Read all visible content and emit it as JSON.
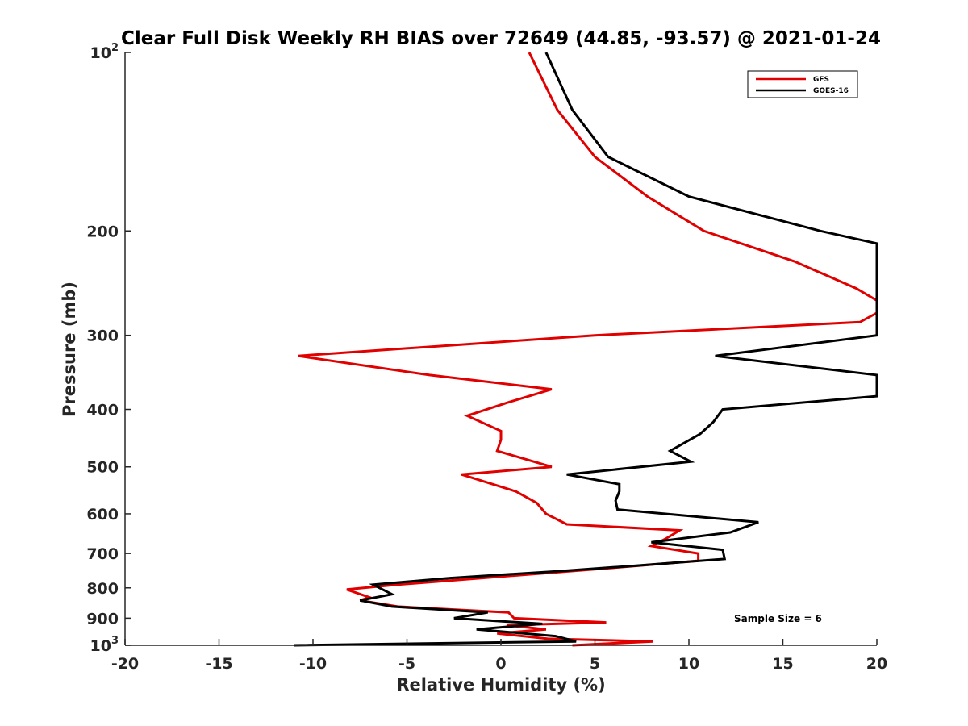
{
  "chart_data": {
    "type": "line",
    "title": "Clear Full Disk Weekly RH BIAS over 72649 (44.85, -93.57) @ 2021-01-24",
    "xlabel": "Relative Humidity (%)",
    "ylabel": "Pressure (mb)",
    "xlim": [
      -20,
      20
    ],
    "ylim": [
      100,
      1000
    ],
    "y_scale": "log",
    "y_reversed": true,
    "grid": false,
    "legend_position": "top-right",
    "x_ticks": [
      "-20",
      "-15",
      "-10",
      "-5",
      "0",
      "5",
      "10",
      "15",
      "20"
    ],
    "y_ticks": [
      {
        "value": 100,
        "label": "10",
        "sup": "2"
      },
      {
        "value": 200,
        "label": "200"
      },
      {
        "value": 300,
        "label": "300"
      },
      {
        "value": 400,
        "label": "400"
      },
      {
        "value": 500,
        "label": "500"
      },
      {
        "value": 600,
        "label": "600"
      },
      {
        "value": 700,
        "label": "700"
      },
      {
        "value": 800,
        "label": "800"
      },
      {
        "value": 900,
        "label": "900"
      },
      {
        "value": 1000,
        "label": "10",
        "sup": "3"
      }
    ],
    "annotation": "Sample Size = 6",
    "series": [
      {
        "name": "GFS",
        "color": "#e00000",
        "points": [
          [
            1.5,
            100
          ],
          [
            3.0,
            125
          ],
          [
            5.0,
            150
          ],
          [
            7.8,
            175
          ],
          [
            10.8,
            200
          ],
          [
            15.6,
            225
          ],
          [
            18.9,
            250
          ],
          [
            20.0,
            262
          ],
          [
            20.0,
            275
          ],
          [
            19.1,
            285
          ],
          [
            5.0,
            300
          ],
          [
            -10.8,
            325
          ],
          [
            -3.8,
            350
          ],
          [
            2.7,
            370
          ],
          [
            0.3,
            390
          ],
          [
            -1.8,
            410
          ],
          [
            0.0,
            435
          ],
          [
            0.0,
            450
          ],
          [
            -0.2,
            470
          ],
          [
            2.7,
            500
          ],
          [
            -2.1,
            515
          ],
          [
            0.8,
            550
          ],
          [
            1.9,
            575
          ],
          [
            2.4,
            600
          ],
          [
            3.5,
            625
          ],
          [
            9.5,
            640
          ],
          [
            8.8,
            660
          ],
          [
            8.0,
            680
          ],
          [
            10.5,
            700
          ],
          [
            10.5,
            720
          ],
          [
            6.0,
            740
          ],
          [
            -1.0,
            770
          ],
          [
            -5.5,
            790
          ],
          [
            -8.2,
            805
          ],
          [
            -7.0,
            830
          ],
          [
            -7.5,
            840
          ],
          [
            -5.5,
            860
          ],
          [
            0.4,
            880
          ],
          [
            0.7,
            900
          ],
          [
            5.6,
            915
          ],
          [
            0.3,
            925
          ],
          [
            2.4,
            940
          ],
          [
            -0.2,
            955
          ],
          [
            2.5,
            975
          ],
          [
            8.1,
            985
          ],
          [
            3.8,
            1000
          ]
        ]
      },
      {
        "name": "GOES-16",
        "color": "#000000",
        "points": [
          [
            2.4,
            100
          ],
          [
            3.8,
            125
          ],
          [
            5.7,
            150
          ],
          [
            10.0,
            175
          ],
          [
            17.0,
            200
          ],
          [
            20.0,
            210
          ],
          [
            20.0,
            300
          ],
          [
            11.4,
            325
          ],
          [
            20.0,
            350
          ],
          [
            20.0,
            380
          ],
          [
            11.8,
            400
          ],
          [
            11.3,
            420
          ],
          [
            10.6,
            440
          ],
          [
            9.0,
            470
          ],
          [
            10.1,
            490
          ],
          [
            3.5,
            515
          ],
          [
            6.3,
            535
          ],
          [
            6.3,
            550
          ],
          [
            6.1,
            570
          ],
          [
            6.2,
            590
          ],
          [
            13.7,
            620
          ],
          [
            12.2,
            645
          ],
          [
            8.0,
            670
          ],
          [
            11.8,
            690
          ],
          [
            11.9,
            715
          ],
          [
            6.9,
            735
          ],
          [
            3.0,
            750
          ],
          [
            -2.7,
            770
          ],
          [
            -6.8,
            790
          ],
          [
            -5.8,
            820
          ],
          [
            -7.5,
            840
          ],
          [
            -5.8,
            860
          ],
          [
            -0.7,
            880
          ],
          [
            -2.5,
            900
          ],
          [
            2.2,
            920
          ],
          [
            -1.3,
            940
          ],
          [
            2.9,
            965
          ],
          [
            4.0,
            985
          ],
          [
            -11.0,
            1000
          ]
        ]
      }
    ]
  }
}
